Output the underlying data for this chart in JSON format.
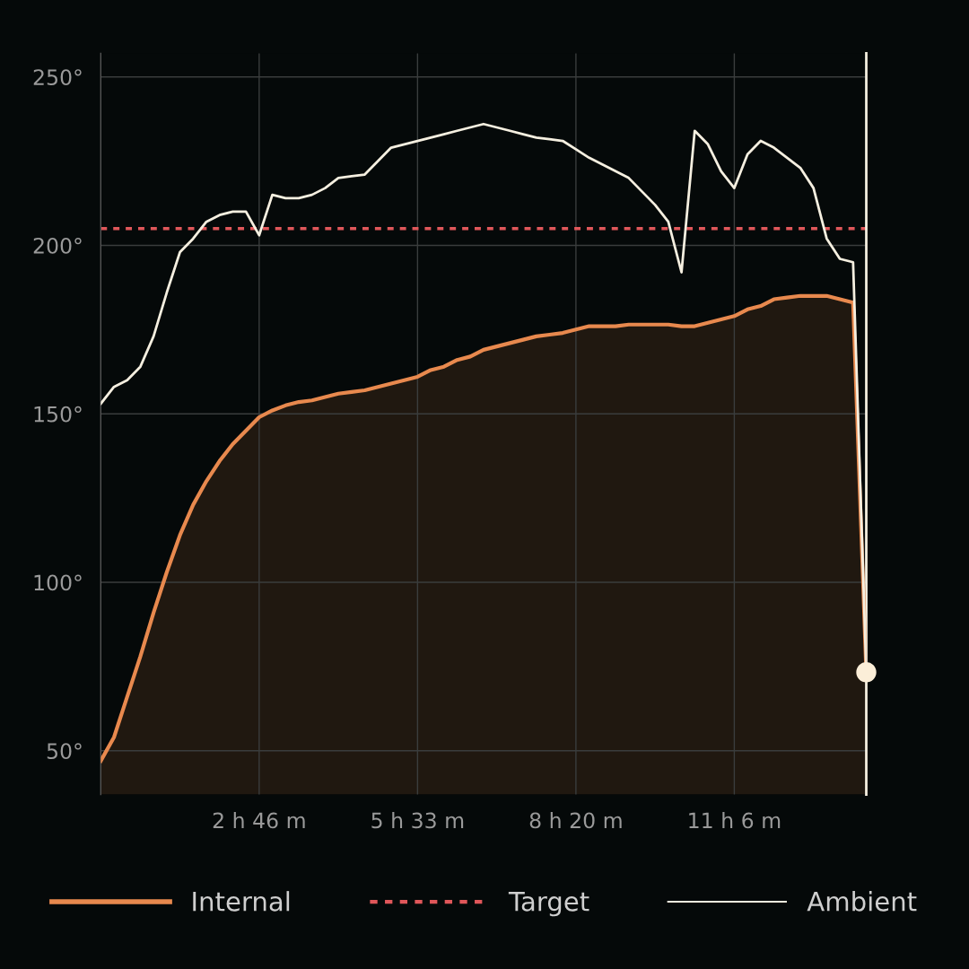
{
  "chart_data": {
    "type": "area",
    "ylim": [
      37,
      257
    ],
    "categories": [
      null,
      null,
      null,
      null,
      null,
      null,
      null,
      null,
      null,
      null,
      null,
      null,
      "2 h 46 m",
      null,
      null,
      null,
      null,
      null,
      null,
      null,
      null,
      null,
      null,
      null,
      "5 h 33 m",
      null,
      null,
      null,
      null,
      null,
      null,
      null,
      null,
      null,
      null,
      null,
      "8 h 20 m",
      null,
      null,
      null,
      null,
      null,
      null,
      null,
      null,
      null,
      null,
      null,
      "11 h 6 m",
      null,
      null,
      null,
      null,
      null,
      null,
      null,
      null,
      null,
      null
    ],
    "yticks": [
      {
        "value": 50,
        "label": "50°"
      },
      {
        "value": 100,
        "label": "100°"
      },
      {
        "value": 150,
        "label": "150°"
      },
      {
        "value": 200,
        "label": "200°"
      },
      {
        "value": 250,
        "label": "250°"
      }
    ],
    "grid": true,
    "legend": "bottom",
    "series": [
      {
        "name": "Internal",
        "color": "#e8894e",
        "values": [
          47,
          54,
          66,
          78,
          91,
          103,
          114,
          123,
          130,
          136,
          141,
          145,
          149,
          151,
          152.5,
          153.5,
          154,
          155,
          156,
          156.5,
          157,
          158,
          159,
          160,
          161,
          163,
          164,
          166,
          167,
          169,
          170,
          171,
          172,
          173,
          173.5,
          174,
          175,
          176,
          176,
          176,
          176.5,
          176.5,
          176.5,
          176.5,
          176,
          176,
          177,
          178,
          179,
          181,
          182,
          184,
          184.5,
          185,
          185,
          185,
          184,
          183,
          73.3
        ]
      },
      {
        "name": "Ambient",
        "type": "line",
        "color": "#f5efe0",
        "values": [
          153,
          158,
          160,
          164,
          173,
          186,
          198,
          202,
          207,
          209,
          210,
          210,
          203,
          215,
          214,
          214,
          215,
          217,
          220,
          220.5,
          221,
          225,
          229,
          230,
          231,
          232,
          233,
          234,
          235,
          236,
          235,
          234,
          233,
          232,
          231.5,
          231,
          228.5,
          226,
          224,
          222,
          220,
          216,
          212,
          207,
          192,
          234,
          230,
          222,
          217,
          227,
          231,
          229,
          226,
          223,
          217,
          202,
          196,
          195,
          73.3
        ]
      },
      {
        "type": "scatter",
        "color": "#fbeed8",
        "marker": "circle",
        "values": [
          null,
          null,
          null,
          null,
          null,
          null,
          null,
          null,
          null,
          null,
          null,
          null,
          null,
          null,
          null,
          null,
          null,
          null,
          null,
          null,
          null,
          null,
          null,
          null,
          null,
          null,
          null,
          null,
          null,
          null,
          null,
          null,
          null,
          null,
          null,
          null,
          null,
          null,
          null,
          null,
          null,
          null,
          null,
          null,
          null,
          null,
          null,
          null,
          null,
          null,
          null,
          null,
          null,
          null,
          null,
          null,
          null,
          null,
          73.3
        ]
      }
    ],
    "ref_lines": [
      {
        "axis": "y",
        "value": 205,
        "label": "Target",
        "color": "#e0575a",
        "line_style": "dotted"
      }
    ]
  }
}
